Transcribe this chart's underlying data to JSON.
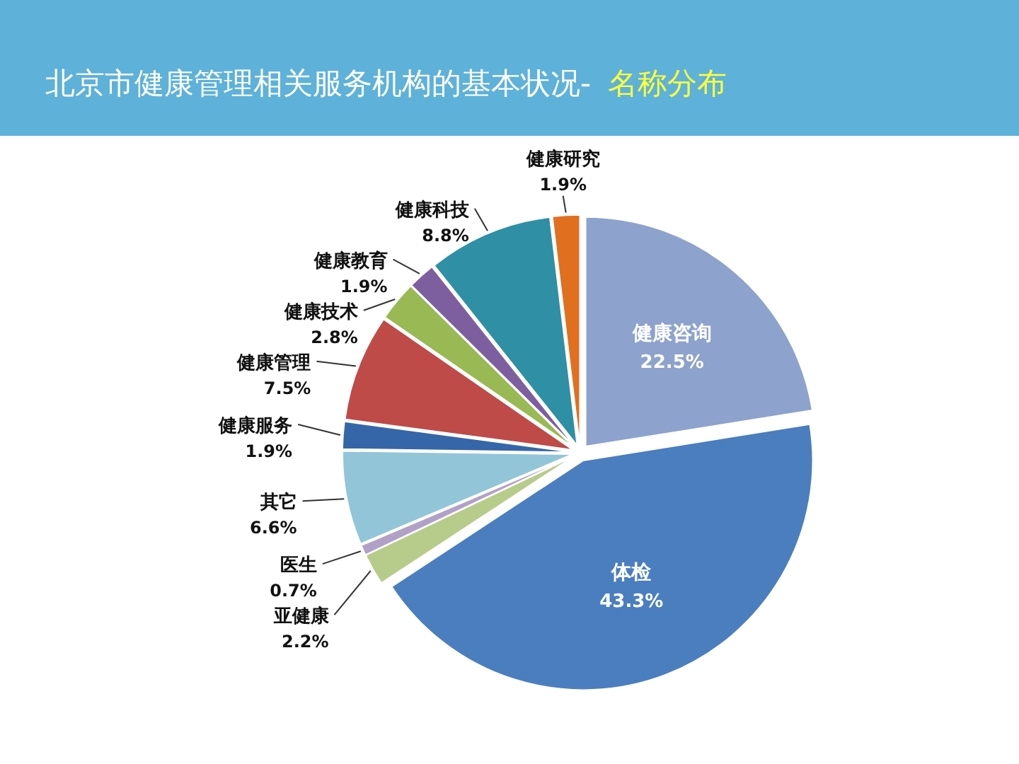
{
  "chart_data": {
    "type": "pie",
    "title": "北京市健康管理相关服务机构的基本状况-",
    "subtitle": "名称分布",
    "categories": [
      "健康咨询",
      "体检",
      "亚健康",
      "医生",
      "其它",
      "健康服务",
      "健康管理",
      "健康技术",
      "健康教育",
      "健康科技",
      "健康研究"
    ],
    "values": [
      22.5,
      43.3,
      2.2,
      0.7,
      6.6,
      1.9,
      7.5,
      2.8,
      1.9,
      8.8,
      1.9
    ],
    "value_labels": [
      "22.5%",
      "43.3%",
      "2.2%",
      "0.7%",
      "6.6%",
      "1.9%",
      "7.5%",
      "2.8%",
      "1.9%",
      "8.8%",
      "1.9%"
    ],
    "colors": [
      "#8da2cc",
      "#4a7ebf",
      "#b7cc8b",
      "#b2a1c7",
      "#92c5d8",
      "#3566a8",
      "#be4b48",
      "#98b954",
      "#7d5fa0",
      "#2f8fa5",
      "#e07020"
    ]
  }
}
